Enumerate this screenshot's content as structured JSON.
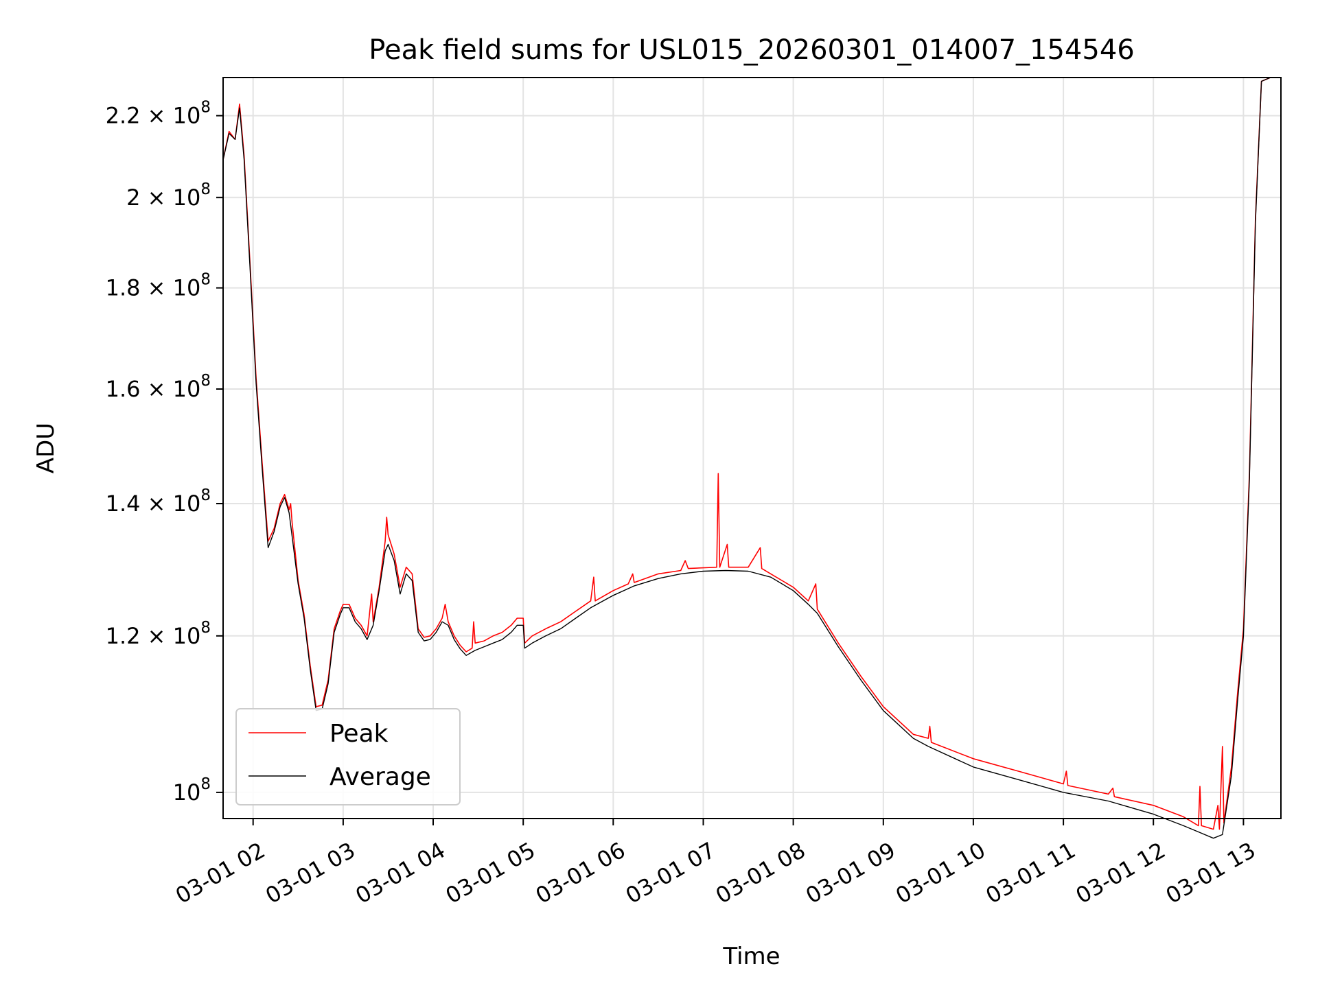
{
  "chart_data": {
    "type": "line",
    "title": "Peak field sums for USL015_20260301_014007_154546",
    "xlabel": "Time",
    "ylabel": "ADU",
    "y_scale": "log",
    "xlim": [
      "2026-03-01T01:40",
      "2026-03-01T13:25"
    ],
    "ylim": [
      97000000,
      230000000
    ],
    "x_ticks": [
      {
        "t": "2026-03-01T02:00",
        "label": "03-01 02"
      },
      {
        "t": "2026-03-01T03:00",
        "label": "03-01 03"
      },
      {
        "t": "2026-03-01T04:00",
        "label": "03-01 04"
      },
      {
        "t": "2026-03-01T05:00",
        "label": "03-01 05"
      },
      {
        "t": "2026-03-01T06:00",
        "label": "03-01 06"
      },
      {
        "t": "2026-03-01T07:00",
        "label": "03-01 07"
      },
      {
        "t": "2026-03-01T08:00",
        "label": "03-01 08"
      },
      {
        "t": "2026-03-01T09:00",
        "label": "03-01 09"
      },
      {
        "t": "2026-03-01T10:00",
        "label": "03-01 10"
      },
      {
        "t": "2026-03-01T11:00",
        "label": "03-01 11"
      },
      {
        "t": "2026-03-01T12:00",
        "label": "03-01 12"
      },
      {
        "t": "2026-03-01T13:00",
        "label": "03-01 13"
      }
    ],
    "y_ticks": [
      {
        "v": 100000000,
        "base": "10",
        "exp": "8"
      },
      {
        "v": 120000000,
        "base": "1.2 × 10",
        "exp": "8"
      },
      {
        "v": 140000000,
        "base": "1.4 × 10",
        "exp": "8"
      },
      {
        "v": 160000000,
        "base": "1.6 × 10",
        "exp": "8"
      },
      {
        "v": 180000000,
        "base": "1.8 × 10",
        "exp": "8"
      },
      {
        "v": 200000000,
        "base": "2 × 10",
        "exp": "8"
      },
      {
        "v": 220000000,
        "base": "2.2 × 10",
        "exp": "8"
      }
    ],
    "grid": true,
    "legend_position": "lower-left",
    "series": [
      {
        "name": "Peak",
        "color": "#ff0000",
        "points": [
          [
            "2026-03-01T01:40",
            209000000.0
          ],
          [
            "2026-03-01T01:44",
            216000000.0
          ],
          [
            "2026-03-01T01:48",
            214000000.0
          ],
          [
            "2026-03-01T01:51",
            223000000.0
          ],
          [
            "2026-03-01T01:54",
            210000000.0
          ],
          [
            "2026-03-01T01:58",
            185000000.0
          ],
          [
            "2026-03-01T02:02",
            162000000.0
          ],
          [
            "2026-03-01T02:06",
            147000000.0
          ],
          [
            "2026-03-01T02:10",
            134000000.0
          ],
          [
            "2026-03-01T02:14",
            136000000.0
          ],
          [
            "2026-03-01T02:18",
            140000000.0
          ],
          [
            "2026-03-01T02:21",
            141500000.0
          ],
          [
            "2026-03-01T02:24",
            139000000.0
          ],
          [
            "2026-03-01T02:25",
            140000000.0
          ],
          [
            "2026-03-01T02:26",
            137000000.0
          ],
          [
            "2026-03-01T02:30",
            128000000.0
          ],
          [
            "2026-03-01T02:34",
            123000000.0
          ],
          [
            "2026-03-01T02:38",
            116000000.0
          ],
          [
            "2026-03-01T02:42",
            110500000.0
          ],
          [
            "2026-03-01T02:46",
            110700000.0
          ],
          [
            "2026-03-01T02:50",
            114000000.0
          ],
          [
            "2026-03-01T02:54",
            121000000.0
          ],
          [
            "2026-03-01T02:58",
            123500000.0
          ],
          [
            "2026-03-01T03:00",
            124500000.0
          ],
          [
            "2026-03-01T03:04",
            124500000.0
          ],
          [
            "2026-03-01T03:08",
            122500000.0
          ],
          [
            "2026-03-01T03:12",
            121500000.0
          ],
          [
            "2026-03-01T03:16",
            120000000.0
          ],
          [
            "2026-03-01T03:19",
            126000000.0
          ],
          [
            "2026-03-01T03:20",
            122000000.0
          ],
          [
            "2026-03-01T03:24",
            127000000.0
          ],
          [
            "2026-03-01T03:28",
            134000000.0
          ],
          [
            "2026-03-01T03:29",
            137800000.0
          ],
          [
            "2026-03-01T03:30",
            135000000.0
          ],
          [
            "2026-03-01T03:34",
            132000000.0
          ],
          [
            "2026-03-01T03:38",
            127000000.0
          ],
          [
            "2026-03-01T03:42",
            130000000.0
          ],
          [
            "2026-03-01T03:46",
            129000000.0
          ],
          [
            "2026-03-01T03:50",
            121000000.0
          ],
          [
            "2026-03-01T03:54",
            119800000.0
          ],
          [
            "2026-03-01T03:58",
            120000000.0
          ],
          [
            "2026-03-01T04:02",
            121000000.0
          ],
          [
            "2026-03-01T04:06",
            122500000.0
          ],
          [
            "2026-03-01T04:08",
            124500000.0
          ],
          [
            "2026-03-01T04:10",
            122000000.0
          ],
          [
            "2026-03-01T04:14",
            120000000.0
          ],
          [
            "2026-03-01T04:18",
            118700000.0
          ],
          [
            "2026-03-01T04:22",
            117800000.0
          ],
          [
            "2026-03-01T04:26",
            118300000.0
          ],
          [
            "2026-03-01T04:27",
            122000000.0
          ],
          [
            "2026-03-01T04:28",
            119000000.0
          ],
          [
            "2026-03-01T04:34",
            119300000.0
          ],
          [
            "2026-03-01T04:40",
            120000000.0
          ],
          [
            "2026-03-01T04:46",
            120500000.0
          ],
          [
            "2026-03-01T04:52",
            121500000.0
          ],
          [
            "2026-03-01T04:56",
            122500000.0
          ],
          [
            "2026-03-01T05:00",
            122500000.0
          ],
          [
            "2026-03-01T05:01",
            119000000.0
          ],
          [
            "2026-03-01T05:06",
            120000000.0
          ],
          [
            "2026-03-01T05:15",
            121000000.0
          ],
          [
            "2026-03-01T05:25",
            122000000.0
          ],
          [
            "2026-03-01T05:35",
            123500000.0
          ],
          [
            "2026-03-01T05:45",
            125000000.0
          ],
          [
            "2026-03-01T05:47",
            128500000.0
          ],
          [
            "2026-03-01T05:48",
            125000000.0
          ],
          [
            "2026-03-01T06:00",
            126500000.0
          ],
          [
            "2026-03-01T06:10",
            127500000.0
          ],
          [
            "2026-03-01T06:13",
            129000000.0
          ],
          [
            "2026-03-01T06:14",
            127700000.0
          ],
          [
            "2026-03-01T06:30",
            129000000.0
          ],
          [
            "2026-03-01T06:45",
            129500000.0
          ],
          [
            "2026-03-01T06:48",
            131000000.0
          ],
          [
            "2026-03-01T06:50",
            129800000.0
          ],
          [
            "2026-03-01T07:09",
            130000000.0
          ],
          [
            "2026-03-01T07:10",
            145000000.0
          ],
          [
            "2026-03-01T07:11",
            130000000.0
          ],
          [
            "2026-03-01T07:16",
            133500000.0
          ],
          [
            "2026-03-01T07:17",
            130000000.0
          ],
          [
            "2026-03-01T07:30",
            130000000.0
          ],
          [
            "2026-03-01T07:38",
            133000000.0
          ],
          [
            "2026-03-01T07:39",
            129800000.0
          ],
          [
            "2026-03-01T07:45",
            129000000.0
          ],
          [
            "2026-03-01T08:00",
            127000000.0
          ],
          [
            "2026-03-01T08:10",
            125000000.0
          ],
          [
            "2026-03-01T08:15",
            127500000.0
          ],
          [
            "2026-03-01T08:16",
            123800000.0
          ],
          [
            "2026-03-01T08:30",
            119000000.0
          ],
          [
            "2026-03-01T08:45",
            114500000.0
          ],
          [
            "2026-03-01T09:00",
            110500000.0
          ],
          [
            "2026-03-01T09:20",
            107000000.0
          ],
          [
            "2026-03-01T09:30",
            106500000.0
          ],
          [
            "2026-03-01T09:31",
            108000000.0
          ],
          [
            "2026-03-01T09:32",
            106000000.0
          ],
          [
            "2026-03-01T10:00",
            104000000.0
          ],
          [
            "2026-03-01T10:30",
            102500000.0
          ],
          [
            "2026-03-01T11:00",
            101000000.0
          ],
          [
            "2026-03-01T11:02",
            102500000.0
          ],
          [
            "2026-03-01T11:03",
            100800000.0
          ],
          [
            "2026-03-01T11:30",
            99800000.0
          ],
          [
            "2026-03-01T11:33",
            100500000.0
          ],
          [
            "2026-03-01T11:34",
            99500000.0
          ],
          [
            "2026-03-01T12:00",
            98500000.0
          ],
          [
            "2026-03-01T12:20",
            97200000.0
          ],
          [
            "2026-03-01T12:30",
            96200000.0
          ],
          [
            "2026-03-01T12:31",
            100700000.0
          ],
          [
            "2026-03-01T12:32",
            96200000.0
          ],
          [
            "2026-03-01T12:40",
            95800000.0
          ],
          [
            "2026-03-01T12:43",
            98500000.0
          ],
          [
            "2026-03-01T12:44",
            95800000.0
          ],
          [
            "2026-03-01T12:46",
            105500000.0
          ],
          [
            "2026-03-01T12:47",
            96500000.0
          ],
          [
            "2026-03-01T12:52",
            103000000.0
          ],
          [
            "2026-03-01T12:56",
            112000000.0
          ],
          [
            "2026-03-01T13:00",
            121000000.0
          ],
          [
            "2026-03-01T13:04",
            145000000.0
          ],
          [
            "2026-03-01T13:08",
            195000000.0
          ],
          [
            "2026-03-01T13:12",
            229000000.0
          ],
          [
            "2026-03-01T13:18",
            230000000.0
          ],
          [
            "2026-03-01T13:25",
            230000000.0
          ]
        ]
      },
      {
        "name": "Average",
        "color": "#000000",
        "points": [
          [
            "2026-03-01T01:40",
            209000000.0
          ],
          [
            "2026-03-01T01:44",
            215500000.0
          ],
          [
            "2026-03-01T01:48",
            214000000.0
          ],
          [
            "2026-03-01T01:51",
            222000000.0
          ],
          [
            "2026-03-01T01:54",
            209000000.0
          ],
          [
            "2026-03-01T01:58",
            184000000.0
          ],
          [
            "2026-03-01T02:02",
            161000000.0
          ],
          [
            "2026-03-01T02:06",
            146000000.0
          ],
          [
            "2026-03-01T02:10",
            133000000.0
          ],
          [
            "2026-03-01T02:14",
            135500000.0
          ],
          [
            "2026-03-01T02:18",
            139500000.0
          ],
          [
            "2026-03-01T02:21",
            141000000.0
          ],
          [
            "2026-03-01T02:24",
            138500000.0
          ],
          [
            "2026-03-01T02:30",
            127500000.0
          ],
          [
            "2026-03-01T02:34",
            122500000.0
          ],
          [
            "2026-03-01T02:38",
            115500000.0
          ],
          [
            "2026-03-01T02:42",
            110000000.0
          ],
          [
            "2026-03-01T02:46",
            110200000.0
          ],
          [
            "2026-03-01T02:50",
            113500000.0
          ],
          [
            "2026-03-01T02:54",
            120500000.0
          ],
          [
            "2026-03-01T02:58",
            123000000.0
          ],
          [
            "2026-03-01T03:00",
            124000000.0
          ],
          [
            "2026-03-01T03:04",
            124000000.0
          ],
          [
            "2026-03-01T03:08",
            122000000.0
          ],
          [
            "2026-03-01T03:12",
            121000000.0
          ],
          [
            "2026-03-01T03:16",
            119500000.0
          ],
          [
            "2026-03-01T03:20",
            121500000.0
          ],
          [
            "2026-03-01T03:24",
            126500000.0
          ],
          [
            "2026-03-01T03:28",
            132500000.0
          ],
          [
            "2026-03-01T03:30",
            133500000.0
          ],
          [
            "2026-03-01T03:34",
            131000000.0
          ],
          [
            "2026-03-01T03:38",
            126000000.0
          ],
          [
            "2026-03-01T03:42",
            129000000.0
          ],
          [
            "2026-03-01T03:46",
            128000000.0
          ],
          [
            "2026-03-01T03:50",
            120500000.0
          ],
          [
            "2026-03-01T03:54",
            119300000.0
          ],
          [
            "2026-03-01T03:58",
            119500000.0
          ],
          [
            "2026-03-01T04:02",
            120500000.0
          ],
          [
            "2026-03-01T04:06",
            122000000.0
          ],
          [
            "2026-03-01T04:10",
            121500000.0
          ],
          [
            "2026-03-01T04:14",
            119500000.0
          ],
          [
            "2026-03-01T04:18",
            118200000.0
          ],
          [
            "2026-03-01T04:22",
            117300000.0
          ],
          [
            "2026-03-01T04:28",
            118000000.0
          ],
          [
            "2026-03-01T04:34",
            118500000.0
          ],
          [
            "2026-03-01T04:40",
            119000000.0
          ],
          [
            "2026-03-01T04:46",
            119500000.0
          ],
          [
            "2026-03-01T04:52",
            120500000.0
          ],
          [
            "2026-03-01T04:56",
            121500000.0
          ],
          [
            "2026-03-01T05:00",
            121500000.0
          ],
          [
            "2026-03-01T05:01",
            118300000.0
          ],
          [
            "2026-03-01T05:06",
            119000000.0
          ],
          [
            "2026-03-01T05:15",
            120000000.0
          ],
          [
            "2026-03-01T05:25",
            121000000.0
          ],
          [
            "2026-03-01T05:35",
            122500000.0
          ],
          [
            "2026-03-01T05:45",
            124000000.0
          ],
          [
            "2026-03-01T06:00",
            125800000.0
          ],
          [
            "2026-03-01T06:10",
            126800000.0
          ],
          [
            "2026-03-01T06:14",
            127200000.0
          ],
          [
            "2026-03-01T06:30",
            128300000.0
          ],
          [
            "2026-03-01T06:45",
            129000000.0
          ],
          [
            "2026-03-01T07:00",
            129400000.0
          ],
          [
            "2026-03-01T07:15",
            129500000.0
          ],
          [
            "2026-03-01T07:30",
            129400000.0
          ],
          [
            "2026-03-01T07:45",
            128500000.0
          ],
          [
            "2026-03-01T08:00",
            126500000.0
          ],
          [
            "2026-03-01T08:10",
            124500000.0
          ],
          [
            "2026-03-01T08:16",
            123200000.0
          ],
          [
            "2026-03-01T08:30",
            118500000.0
          ],
          [
            "2026-03-01T08:45",
            114000000.0
          ],
          [
            "2026-03-01T09:00",
            110000000.0
          ],
          [
            "2026-03-01T09:20",
            106500000.0
          ],
          [
            "2026-03-01T09:30",
            105500000.0
          ],
          [
            "2026-03-01T10:00",
            103000000.0
          ],
          [
            "2026-03-01T10:30",
            101500000.0
          ],
          [
            "2026-03-01T11:00",
            100000000.0
          ],
          [
            "2026-03-01T11:30",
            99000000.0
          ],
          [
            "2026-03-01T12:00",
            97500000.0
          ],
          [
            "2026-03-01T12:20",
            96200000.0
          ],
          [
            "2026-03-01T12:30",
            95500000.0
          ],
          [
            "2026-03-01T12:40",
            94800000.0
          ],
          [
            "2026-03-01T12:46",
            95200000.0
          ],
          [
            "2026-03-01T12:52",
            102000000.0
          ],
          [
            "2026-03-01T12:56",
            111000000.0
          ],
          [
            "2026-03-01T13:00",
            120000000.0
          ],
          [
            "2026-03-01T13:04",
            144000000.0
          ],
          [
            "2026-03-01T13:08",
            194000000.0
          ],
          [
            "2026-03-01T13:12",
            229000000.0
          ],
          [
            "2026-03-01T13:18",
            230000000.0
          ],
          [
            "2026-03-01T13:25",
            230000000.0
          ]
        ]
      }
    ]
  }
}
